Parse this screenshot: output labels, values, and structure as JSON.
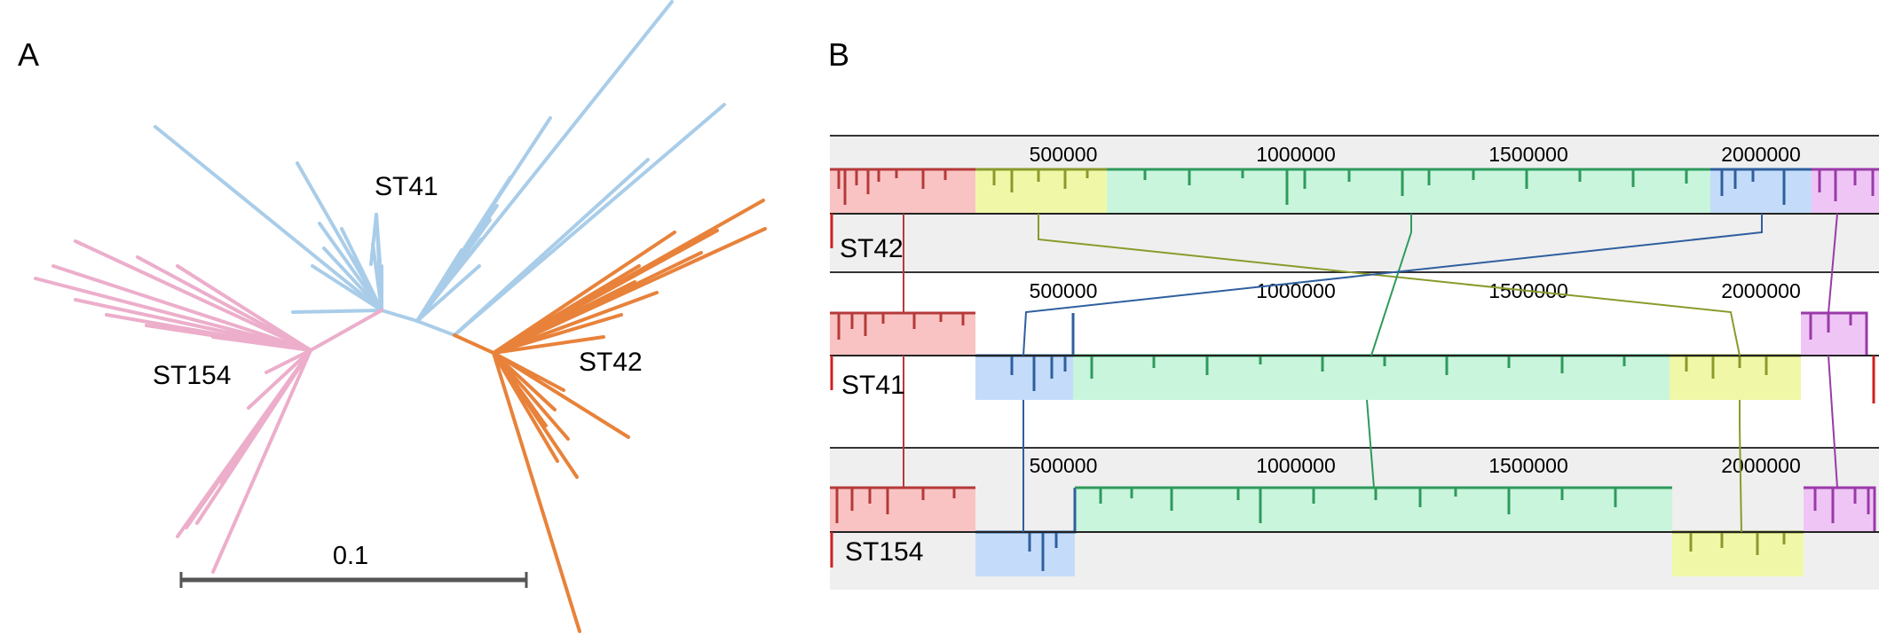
{
  "panels": {
    "a": {
      "label": "A"
    },
    "b": {
      "label": "B"
    }
  },
  "colors": {
    "st41_clade": "#a9cde9",
    "st42_clade": "#e8823a",
    "st154_clade": "#ecaecb",
    "scale_bar": "#555555",
    "track_bg": "#efefef",
    "block_red": "#f9c3c3",
    "block_red_line": "#b53a3a",
    "block_yellow": "#f0f8a8",
    "block_yellow_line": "#8b9a2c",
    "block_green": "#c9f5dc",
    "block_green_line": "#2e9a5c",
    "block_blue": "#c4dcfa",
    "block_blue_line": "#2f5f9e",
    "block_purple": "#efc5f5",
    "block_purple_line": "#9a3aa8"
  },
  "tree": {
    "clades": [
      {
        "name": "ST41"
      },
      {
        "name": "ST42"
      },
      {
        "name": "ST154"
      }
    ],
    "scale_bar": {
      "label": "0.1",
      "value": 0.1
    }
  },
  "alignment": {
    "ticks": [
      {
        "position": 500000,
        "label": "500000"
      },
      {
        "position": 1000000,
        "label": "1000000"
      },
      {
        "position": 1500000,
        "label": "1500000"
      },
      {
        "position": 2000000,
        "label": "2000000"
      }
    ],
    "genomes": [
      {
        "name": "ST42",
        "blocks": [
          {
            "color": "red",
            "start": 0,
            "end": 310000,
            "strand": "+"
          },
          {
            "color": "yellow",
            "start": 310000,
            "end": 590000,
            "strand": "+"
          },
          {
            "color": "green",
            "start": 590000,
            "end": 1900000,
            "strand": "+"
          },
          {
            "color": "blue",
            "start": 1900000,
            "end": 2120000,
            "strand": "+"
          },
          {
            "color": "purple",
            "start": 2120000,
            "end": 2240000,
            "strand": "+"
          }
        ]
      },
      {
        "name": "ST41",
        "blocks": [
          {
            "color": "red",
            "start": 0,
            "end": 310000,
            "strand": "+"
          },
          {
            "color": "blue",
            "start": 310000,
            "end": 520000,
            "strand": "-"
          },
          {
            "color": "green",
            "start": 520000,
            "end": 1810000,
            "strand": "-"
          },
          {
            "color": "yellow",
            "start": 1810000,
            "end": 2090000,
            "strand": "-"
          },
          {
            "color": "purple",
            "start": 2090000,
            "end": 2230000,
            "strand": "+"
          }
        ]
      },
      {
        "name": "ST154",
        "blocks": [
          {
            "color": "red",
            "start": 0,
            "end": 310000,
            "strand": "+"
          },
          {
            "color": "blue",
            "start": 310000,
            "end": 530000,
            "strand": "-"
          },
          {
            "color": "green",
            "start": 530000,
            "end": 1810000,
            "strand": "+"
          },
          {
            "color": "yellow",
            "start": 1810000,
            "end": 2090000,
            "strand": "-"
          },
          {
            "color": "purple",
            "start": 2090000,
            "end": 2230000,
            "strand": "+"
          }
        ]
      }
    ]
  }
}
